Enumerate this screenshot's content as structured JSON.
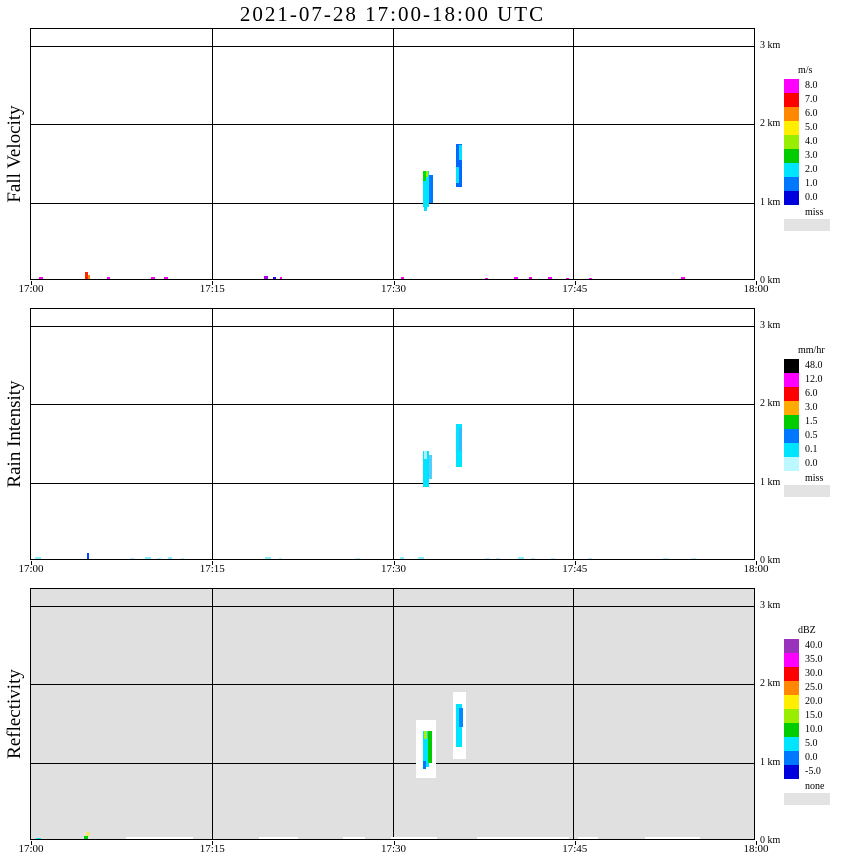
{
  "title": "2021-07-28  17:00-18:00 UTC",
  "chart_data": {
    "type": "heatmap",
    "description": "Time-height cross sections of Fall Velocity, Rain Intensity and Reflectivity, 17:00-18:00 UTC 2021-07-28",
    "x_axis": {
      "ticks": [
        "17:00",
        "17:15",
        "17:30",
        "17:45",
        "18:00"
      ],
      "range_minutes": [
        0,
        60
      ]
    },
    "y_axis": {
      "ticks": [
        "0 km",
        "1 km",
        "2 km",
        "3 km"
      ],
      "range_km": [
        0,
        3.2
      ],
      "gridlines_km": [
        1,
        2,
        3
      ]
    },
    "cells_format": [
      "t_start_min",
      "duration_min",
      "base_height_km",
      "depth_km",
      "color"
    ],
    "panels": [
      {
        "label": "Fall Velocity",
        "background": "#ffffff",
        "colorbar": {
          "title": "m/s",
          "entries": [
            {
              "label": "8.0",
              "color": "#ff00ff"
            },
            {
              "label": "7.0",
              "color": "#ff0000"
            },
            {
              "label": "6.0",
              "color": "#ff8800"
            },
            {
              "label": "5.0",
              "color": "#ffee00"
            },
            {
              "label": "4.0",
              "color": "#99ee00"
            },
            {
              "label": "3.0",
              "color": "#00cc00"
            },
            {
              "label": "2.0",
              "color": "#00e5ff"
            },
            {
              "label": "1.0",
              "color": "#0077ff"
            },
            {
              "label": "0.0",
              "color": "#0000dd"
            }
          ],
          "missing_label": "miss",
          "missing_color": "#e3e3e3"
        },
        "cells": [
          [
            32.4,
            0.5,
            0.95,
            0.45,
            "#00e5ff"
          ],
          [
            32.9,
            0.35,
            1.0,
            0.35,
            "#0077ff"
          ],
          [
            32.4,
            0.25,
            1.28,
            0.12,
            "#00dd00"
          ],
          [
            32.65,
            0.2,
            1.33,
            0.08,
            "#aaee00"
          ],
          [
            32.5,
            0.3,
            0.9,
            0.08,
            "#00e5ff"
          ],
          [
            35.2,
            0.45,
            1.2,
            0.55,
            "#0066ff"
          ],
          [
            35.45,
            0.25,
            1.55,
            0.18,
            "#00e5ff"
          ],
          [
            35.2,
            0.2,
            1.25,
            0.2,
            "#00e5ff"
          ],
          [
            0.7,
            0.3,
            0,
            0.05,
            "#ff00ff"
          ],
          [
            4.5,
            0.25,
            0,
            0.12,
            "#ff2200"
          ],
          [
            4.75,
            0.15,
            0.02,
            0.06,
            "#ff8800"
          ],
          [
            6.3,
            0.25,
            0,
            0.05,
            "#ff00ff"
          ],
          [
            9.9,
            0.4,
            0,
            0.05,
            "#ff00ff"
          ],
          [
            11.0,
            0.3,
            0,
            0.05,
            "#ee00ee"
          ],
          [
            19.3,
            0.3,
            0,
            0.06,
            "#aa00ee"
          ],
          [
            20.0,
            0.25,
            0,
            0.05,
            "#3300ff"
          ],
          [
            20.6,
            0.2,
            0,
            0.05,
            "#ff00ff"
          ],
          [
            30.6,
            0.3,
            0,
            0.05,
            "#ff00ff"
          ],
          [
            37.6,
            0.25,
            0,
            0.04,
            "#ff00ff"
          ],
          [
            40.0,
            0.3,
            0,
            0.05,
            "#ff00ff"
          ],
          [
            41.2,
            0.25,
            0,
            0.05,
            "#ee00ee"
          ],
          [
            42.8,
            0.3,
            0,
            0.05,
            "#ff00ff"
          ],
          [
            44.3,
            0.2,
            0,
            0.04,
            "#ff00ff"
          ],
          [
            46.2,
            0.2,
            0,
            0.04,
            "#ff00ff"
          ],
          [
            53.8,
            0.35,
            0,
            0.05,
            "#ff00ff"
          ]
        ]
      },
      {
        "label": "Rain Intensity",
        "background": "#ffffff",
        "colorbar": {
          "title": "mm/hr",
          "entries": [
            {
              "label": "48.0",
              "color": "#000000"
            },
            {
              "label": "12.0",
              "color": "#ff00ff"
            },
            {
              "label": "6.0",
              "color": "#ff0000"
            },
            {
              "label": "3.0",
              "color": "#ffaa00"
            },
            {
              "label": "1.5",
              "color": "#00cc00"
            },
            {
              "label": "0.5",
              "color": "#0077ff"
            },
            {
              "label": "0.1",
              "color": "#00e5ff"
            },
            {
              "label": "0.0",
              "color": "#bbf8ff"
            }
          ],
          "missing_label": "miss",
          "missing_color": "#e3e3e3"
        },
        "cells": [
          [
            32.4,
            0.5,
            0.95,
            0.45,
            "#00e5ff"
          ],
          [
            32.9,
            0.3,
            1.05,
            0.3,
            "#55ccff"
          ],
          [
            32.5,
            0.25,
            1.3,
            0.1,
            "#aaf0ff"
          ],
          [
            35.2,
            0.45,
            1.2,
            0.55,
            "#00e5ff"
          ],
          [
            35.4,
            0.25,
            1.4,
            0.3,
            "#33bbff"
          ],
          [
            0.3,
            0.5,
            0,
            0.05,
            "#88eeff"
          ],
          [
            4.6,
            0.2,
            0,
            0.1,
            "#0044ff"
          ],
          [
            8.2,
            0.4,
            0,
            0.04,
            "#aaf0ff"
          ],
          [
            9.4,
            0.5,
            0,
            0.05,
            "#88eeff"
          ],
          [
            10.4,
            0.4,
            0,
            0.04,
            "#aaf0ff"
          ],
          [
            11.3,
            0.4,
            0,
            0.05,
            "#88eeff"
          ],
          [
            12.4,
            0.3,
            0,
            0.04,
            "#aaf0ff"
          ],
          [
            19.4,
            0.5,
            0,
            0.05,
            "#88eeff"
          ],
          [
            20.5,
            0.3,
            0,
            0.04,
            "#aaf0ff"
          ],
          [
            26.8,
            0.4,
            0,
            0.04,
            "#aaf0ff"
          ],
          [
            30.5,
            0.4,
            0,
            0.05,
            "#88eeff"
          ],
          [
            32.0,
            0.5,
            0,
            0.05,
            "#88eeff"
          ],
          [
            37.6,
            0.4,
            0,
            0.04,
            "#aaf0ff"
          ],
          [
            38.5,
            0.3,
            0,
            0.04,
            "#aaf0ff"
          ],
          [
            40.3,
            0.5,
            0,
            0.05,
            "#88eeff"
          ],
          [
            41.4,
            0.3,
            0,
            0.04,
            "#aaf0ff"
          ],
          [
            43.0,
            0.4,
            0,
            0.04,
            "#aaf0ff"
          ],
          [
            46.1,
            0.3,
            0,
            0.04,
            "#aaf0ff"
          ],
          [
            52.3,
            0.5,
            0,
            0.04,
            "#aaf0ff"
          ],
          [
            54.6,
            0.4,
            0,
            0.04,
            "#aaf0ff"
          ]
        ]
      },
      {
        "label": "Reflectivity",
        "background": "#e0e0e0",
        "colorbar": {
          "title": "dBZ",
          "entries": [
            {
              "label": "40.0",
              "color": "#9933bb"
            },
            {
              "label": "35.0",
              "color": "#ff00ff"
            },
            {
              "label": "30.0",
              "color": "#ff0000"
            },
            {
              "label": "25.0",
              "color": "#ff8800"
            },
            {
              "label": "20.0",
              "color": "#ffee00"
            },
            {
              "label": "15.0",
              "color": "#99ee00"
            },
            {
              "label": "10.0",
              "color": "#00cc00"
            },
            {
              "label": "5.0",
              "color": "#00e5ff"
            },
            {
              "label": "0.0",
              "color": "#0077ff"
            },
            {
              "label": "-5.0",
              "color": "#0000dd"
            }
          ],
          "missing_label": "none",
          "missing_color": "#e3e3e3"
        },
        "cells": [
          [
            31.9,
            1.6,
            0.8,
            0.75,
            "#ffffff"
          ],
          [
            34.9,
            1.1,
            1.05,
            0.85,
            "#ffffff"
          ],
          [
            32.4,
            0.5,
            0.95,
            0.45,
            "#00e5ff"
          ],
          [
            32.85,
            0.3,
            1.0,
            0.4,
            "#00cc00"
          ],
          [
            32.5,
            0.25,
            1.3,
            0.1,
            "#aaee00"
          ],
          [
            32.45,
            0.2,
            0.92,
            0.1,
            "#0077ff"
          ],
          [
            35.2,
            0.45,
            1.2,
            0.55,
            "#00e5ff"
          ],
          [
            35.45,
            0.3,
            1.45,
            0.25,
            "#0088ff"
          ],
          [
            7.9,
            5.5,
            0,
            0.05,
            "#ffffff"
          ],
          [
            18.9,
            3.2,
            0,
            0.05,
            "#ffffff"
          ],
          [
            25.8,
            1.8,
            0,
            0.05,
            "#ffffff"
          ],
          [
            29.8,
            3.8,
            0,
            0.05,
            "#ffffff"
          ],
          [
            36.9,
            7.6,
            0,
            0.05,
            "#ffffff"
          ],
          [
            45.3,
            1.6,
            0,
            0.05,
            "#ffffff"
          ],
          [
            50.8,
            4.6,
            0,
            0.05,
            "#ffffff"
          ],
          [
            0.4,
            0.4,
            0,
            0.04,
            "#00e5ff"
          ],
          [
            4.4,
            0.3,
            0,
            0.07,
            "#00cc00"
          ],
          [
            4.6,
            0.2,
            0.06,
            0.05,
            "#ffee00"
          ]
        ]
      }
    ]
  }
}
